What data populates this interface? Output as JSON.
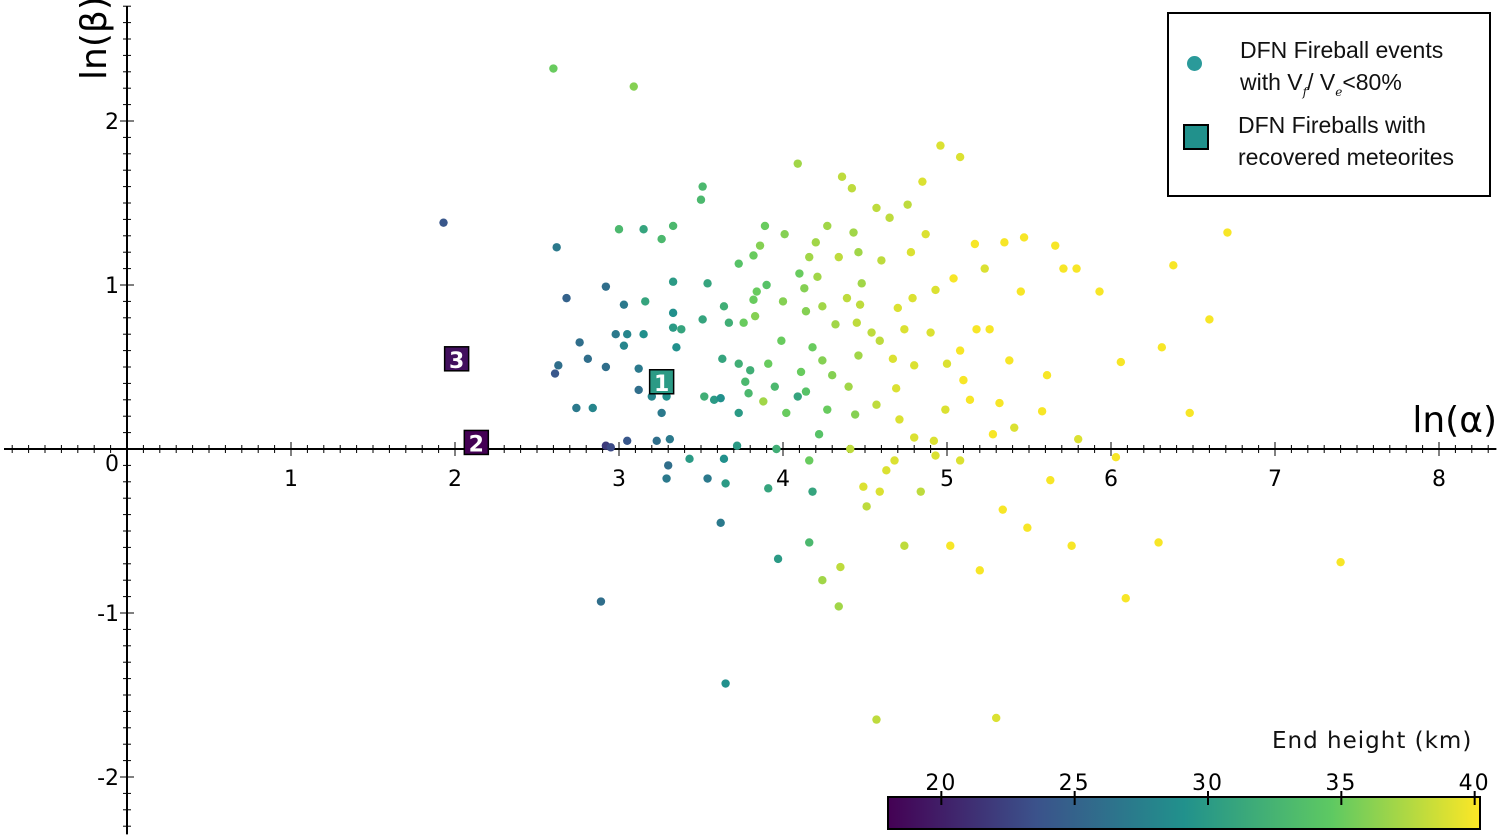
{
  "chart_data": {
    "type": "scatter",
    "xlabel": "ln(α)",
    "ylabel": "ln(β)",
    "xlim": [
      -0.75,
      8.35
    ],
    "ylim": [
      -2.35,
      2.7
    ],
    "x_ticks": [
      0,
      1,
      2,
      3,
      4,
      5,
      6,
      7,
      8
    ],
    "y_ticks": [
      -2,
      -1,
      0,
      1,
      2
    ],
    "grid": false,
    "legend_placement": "top-right",
    "legend": {
      "events_line1": "DFN Fireball events",
      "events_line2_prefix": "with V",
      "events_sub_f": "f",
      "events_mid": "/ V",
      "events_sub_e": "e",
      "events_suffix": "<80%",
      "recovered_line1": "DFN Fireballs with",
      "recovered_line2": "recovered meteorites"
    },
    "colorbar": {
      "label": "End height (km)",
      "colormap": "viridis",
      "range": [
        18,
        40.2
      ],
      "ticks": [
        20,
        25,
        30,
        35,
        40
      ],
      "placement": "bottom-right"
    },
    "series": [
      {
        "name": "DFN Fireball events with Vf / Ve<80%",
        "marker": "circle",
        "points": [
          [
            1.93,
            1.38,
            24
          ],
          [
            2.6,
            2.32,
            35
          ],
          [
            3.09,
            2.21,
            36
          ],
          [
            2.62,
            1.23,
            27
          ],
          [
            2.68,
            0.92,
            25
          ],
          [
            2.76,
            0.65,
            26
          ],
          [
            2.63,
            0.51,
            26
          ],
          [
            2.61,
            0.46,
            24
          ],
          [
            2.74,
            0.25,
            27
          ],
          [
            2.84,
            0.25,
            28
          ],
          [
            2.81,
            0.55,
            26
          ],
          [
            2.92,
            0.99,
            26
          ],
          [
            2.92,
            0.5,
            26
          ],
          [
            2.92,
            0.02,
            22
          ],
          [
            2.95,
            0.01,
            23
          ],
          [
            2.98,
            0.7,
            27
          ],
          [
            3.03,
            0.63,
            28
          ],
          [
            3.05,
            0.7,
            28
          ],
          [
            3.03,
            0.88,
            27
          ],
          [
            3.0,
            1.34,
            33
          ],
          [
            3.05,
            0.05,
            24
          ],
          [
            2.89,
            -0.93,
            26
          ],
          [
            3.12,
            0.49,
            27
          ],
          [
            3.12,
            0.36,
            26
          ],
          [
            3.15,
            1.34,
            31
          ],
          [
            3.16,
            0.9,
            31
          ],
          [
            3.15,
            0.7,
            29
          ],
          [
            3.2,
            0.32,
            28
          ],
          [
            3.23,
            0.05,
            26
          ],
          [
            3.26,
            0.22,
            27
          ],
          [
            3.29,
            0.32,
            29
          ],
          [
            3.3,
            -0.1,
            26
          ],
          [
            3.29,
            -0.18,
            27
          ],
          [
            3.31,
            0.06,
            27
          ],
          [
            3.26,
            1.28,
            33
          ],
          [
            3.33,
            1.36,
            33
          ],
          [
            3.33,
            1.02,
            30
          ],
          [
            3.33,
            0.83,
            29
          ],
          [
            3.33,
            0.74,
            30
          ],
          [
            3.38,
            0.73,
            31
          ],
          [
            3.35,
            0.62,
            29
          ],
          [
            3.43,
            -0.06,
            30
          ],
          [
            3.51,
            1.6,
            33
          ],
          [
            3.5,
            1.52,
            33
          ],
          [
            3.54,
            1.01,
            31
          ],
          [
            3.51,
            0.79,
            31
          ],
          [
            3.52,
            0.32,
            32
          ],
          [
            3.54,
            -0.18,
            27
          ],
          [
            3.58,
            0.3,
            30
          ],
          [
            3.62,
            0.31,
            29
          ],
          [
            3.63,
            0.55,
            31
          ],
          [
            3.64,
            0.87,
            32
          ],
          [
            3.64,
            -0.06,
            29
          ],
          [
            3.65,
            -0.21,
            30
          ],
          [
            3.62,
            -0.45,
            27
          ],
          [
            3.65,
            -1.43,
            29
          ],
          [
            3.67,
            0.77,
            32
          ],
          [
            3.72,
            0.02,
            30
          ],
          [
            3.73,
            1.13,
            34
          ],
          [
            3.73,
            0.52,
            32
          ],
          [
            3.73,
            0.22,
            30
          ],
          [
            3.76,
            0.77,
            35
          ],
          [
            3.77,
            0.41,
            33
          ],
          [
            3.79,
            0.34,
            33
          ],
          [
            3.8,
            0.48,
            32
          ],
          [
            3.82,
            1.18,
            35
          ],
          [
            3.82,
            0.91,
            35
          ],
          [
            3.83,
            0.81,
            36
          ],
          [
            3.84,
            0.96,
            35
          ],
          [
            3.86,
            1.24,
            36
          ],
          [
            3.89,
            1.36,
            35
          ],
          [
            3.9,
            1.0,
            34
          ],
          [
            3.91,
            0.52,
            35
          ],
          [
            3.88,
            0.29,
            37
          ],
          [
            3.91,
            -0.24,
            31
          ],
          [
            3.95,
            0.38,
            33
          ],
          [
            3.96,
            0.0,
            32
          ],
          [
            3.97,
            -0.67,
            30
          ],
          [
            3.99,
            0.66,
            35
          ],
          [
            4.0,
            0.9,
            36
          ],
          [
            4.01,
            1.31,
            36
          ],
          [
            4.02,
            0.22,
            35
          ],
          [
            4.09,
            0.32,
            31
          ],
          [
            4.1,
            1.07,
            35
          ],
          [
            4.11,
            0.47,
            35
          ],
          [
            4.09,
            1.74,
            37
          ],
          [
            4.13,
            0.98,
            36
          ],
          [
            4.14,
            0.35,
            34
          ],
          [
            4.14,
            0.84,
            36
          ],
          [
            4.16,
            1.17,
            37
          ],
          [
            4.18,
            0.62,
            35
          ],
          [
            4.18,
            -0.26,
            31
          ],
          [
            4.2,
            1.26,
            37
          ],
          [
            4.21,
            1.05,
            37
          ],
          [
            4.22,
            0.09,
            34
          ],
          [
            4.24,
            0.87,
            37
          ],
          [
            4.24,
            0.54,
            36
          ],
          [
            4.27,
            0.24,
            35
          ],
          [
            4.3,
            0.45,
            36
          ],
          [
            4.16,
            -0.57,
            33
          ],
          [
            4.24,
            -0.8,
            37
          ],
          [
            4.27,
            1.36,
            37
          ],
          [
            4.32,
            0.76,
            37
          ],
          [
            4.34,
            1.17,
            38
          ],
          [
            4.35,
            -0.72,
            38
          ],
          [
            4.34,
            -0.96,
            37
          ],
          [
            4.36,
            1.66,
            38
          ],
          [
            4.39,
            0.92,
            38
          ],
          [
            4.4,
            0.38,
            37
          ],
          [
            4.42,
            1.59,
            38
          ],
          [
            4.43,
            1.32,
            37
          ],
          [
            4.45,
            0.77,
            38
          ],
          [
            4.46,
            0.57,
            37
          ],
          [
            4.44,
            0.21,
            36
          ],
          [
            4.46,
            1.2,
            37
          ],
          [
            4.48,
            1.01,
            37
          ],
          [
            4.49,
            -0.23,
            39
          ],
          [
            4.51,
            -0.35,
            38
          ],
          [
            4.54,
            0.71,
            38
          ],
          [
            4.57,
            0.27,
            38
          ],
          [
            4.57,
            1.47,
            38
          ],
          [
            4.57,
            -1.65,
            38
          ],
          [
            4.59,
            -0.26,
            39
          ],
          [
            4.6,
            1.15,
            38
          ],
          [
            4.63,
            -0.13,
            39
          ],
          [
            4.65,
            1.41,
            38
          ],
          [
            4.67,
            0.55,
            39
          ],
          [
            4.69,
            0.37,
            39
          ],
          [
            4.7,
            0.86,
            39
          ],
          [
            4.71,
            0.18,
            39
          ],
          [
            4.74,
            -0.59,
            38
          ],
          [
            4.76,
            1.49,
            38
          ],
          [
            4.78,
            1.2,
            39
          ],
          [
            4.79,
            0.92,
            39
          ],
          [
            4.8,
            0.07,
            39
          ],
          [
            4.84,
            -0.26,
            38
          ],
          [
            4.85,
            1.63,
            39
          ],
          [
            4.87,
            1.31,
            39
          ],
          [
            4.9,
            0.71,
            39
          ],
          [
            4.92,
            0.05,
            39
          ],
          [
            4.96,
            1.85,
            39
          ],
          [
            4.99,
            0.24,
            39
          ],
          [
            5.0,
            0.52,
            39
          ],
          [
            5.02,
            -0.59,
            40
          ],
          [
            5.04,
            1.04,
            40
          ],
          [
            5.08,
            1.78,
            39
          ],
          [
            5.1,
            0.42,
            40
          ],
          [
            5.17,
            1.25,
            40
          ],
          [
            5.18,
            0.73,
            40
          ],
          [
            5.2,
            -0.74,
            40
          ],
          [
            5.23,
            1.1,
            39
          ],
          [
            5.28,
            0.09,
            40
          ],
          [
            5.3,
            -1.64,
            39
          ],
          [
            5.32,
            0.28,
            40
          ],
          [
            5.35,
            1.26,
            40
          ],
          [
            5.34,
            -0.37,
            40
          ],
          [
            5.41,
            0.13,
            39
          ],
          [
            5.45,
            0.96,
            40
          ],
          [
            5.47,
            1.29,
            40
          ],
          [
            5.49,
            -0.48,
            40
          ],
          [
            5.58,
            0.23,
            40
          ],
          [
            5.61,
            0.45,
            40
          ],
          [
            5.63,
            -0.19,
            40
          ],
          [
            5.66,
            1.24,
            40
          ],
          [
            5.71,
            1.1,
            40
          ],
          [
            5.76,
            -0.59,
            40
          ],
          [
            5.79,
            1.1,
            40
          ],
          [
            5.8,
            0.06,
            39
          ],
          [
            5.93,
            0.96,
            40
          ],
          [
            6.03,
            -0.05,
            40
          ],
          [
            6.06,
            0.53,
            40
          ],
          [
            6.09,
            -0.91,
            40
          ],
          [
            6.29,
            -0.57,
            40
          ],
          [
            6.31,
            0.62,
            40
          ],
          [
            6.38,
            1.12,
            40
          ],
          [
            6.48,
            0.22,
            40
          ],
          [
            6.6,
            0.79,
            40
          ],
          [
            6.71,
            1.32,
            40
          ],
          [
            7.4,
            -0.69,
            40
          ],
          [
            4.47,
            0.88,
            38
          ],
          [
            4.59,
            0.66,
            38
          ],
          [
            4.74,
            0.73,
            39
          ],
          [
            4.8,
            0.51,
            39
          ],
          [
            4.93,
            0.97,
            39
          ],
          [
            5.08,
            0.6,
            40
          ],
          [
            5.14,
            0.3,
            40
          ],
          [
            5.26,
            0.73,
            40
          ],
          [
            5.38,
            0.54,
            40
          ],
          [
            4.41,
            0.0,
            38
          ],
          [
            4.68,
            -0.07,
            39
          ],
          [
            4.93,
            -0.04,
            39
          ],
          [
            5.08,
            -0.07,
            39
          ],
          [
            4.16,
            -0.07,
            35
          ]
        ]
      },
      {
        "name": "DFN Fireballs with recovered meteorites",
        "marker": "square",
        "points": [
          {
            "label": "1",
            "x": 3.26,
            "y": 0.41,
            "end_height": 30
          },
          {
            "label": "2",
            "x": 2.13,
            "y": 0.04,
            "end_height": 18
          },
          {
            "label": "3",
            "x": 2.01,
            "y": 0.55,
            "end_height": 19
          }
        ]
      }
    ]
  }
}
